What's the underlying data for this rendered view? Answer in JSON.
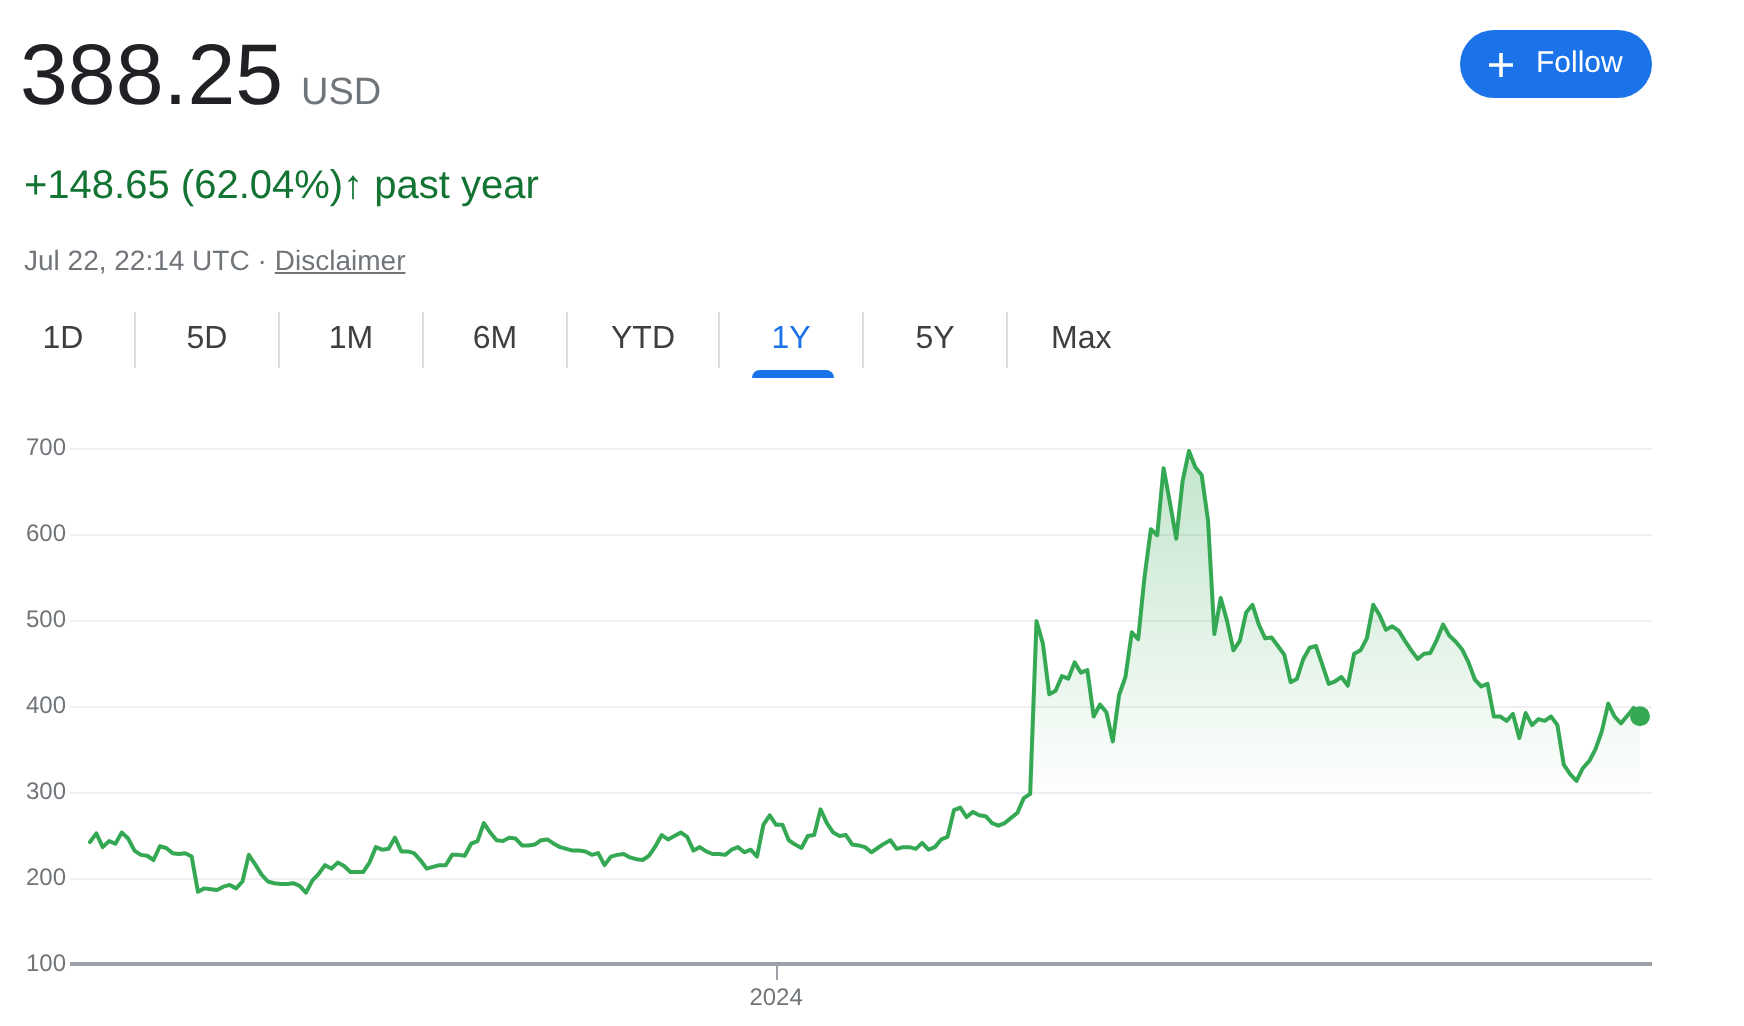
{
  "chart_data": {
    "type": "area",
    "title": "388.25 USD",
    "subtitle": "+148.65 (62.04%)↑ past year",
    "annotations": [
      "Jul 22, 22:14 UTC ·",
      "Disclaimer",
      "1D",
      "5D",
      "1M",
      "6M",
      "YTD",
      "1Y",
      "5Y",
      "Max",
      "Follow"
    ],
    "categories": [
      null,
      null,
      null,
      null,
      null,
      null,
      null,
      null,
      null,
      null,
      null,
      null,
      null,
      null,
      null,
      null,
      null,
      null,
      null,
      null,
      null,
      null,
      null,
      null,
      null,
      null,
      null,
      null,
      null,
      null,
      null,
      null,
      null,
      null,
      null,
      null,
      null,
      null,
      null,
      null,
      null,
      null,
      null,
      null,
      null,
      null,
      null,
      null,
      null,
      null,
      null,
      null,
      null,
      null,
      null,
      null,
      null,
      null,
      null,
      null,
      null,
      null,
      null,
      null,
      null,
      null,
      null,
      null,
      null,
      null,
      null,
      null,
      null,
      null,
      null,
      null,
      null,
      null,
      null,
      null,
      null,
      null,
      null,
      null,
      null,
      null,
      null,
      null,
      null,
      null,
      null,
      null,
      null,
      null,
      null,
      null,
      null,
      null,
      null,
      null,
      null,
      null,
      null,
      null,
      null,
      null,
      null,
      null,
      "2024",
      null,
      null,
      null,
      null,
      null,
      null,
      null,
      null,
      null,
      null,
      null,
      null,
      null,
      null,
      null,
      null,
      null,
      null,
      null,
      null,
      null,
      null,
      null,
      null,
      null,
      null,
      null,
      null,
      null,
      null,
      null,
      null,
      null,
      null,
      null,
      null,
      null,
      null,
      null,
      null,
      null,
      null,
      null,
      null,
      null,
      null,
      null,
      null,
      null,
      null,
      null,
      null,
      null,
      null,
      null,
      null,
      null,
      null,
      null,
      null,
      null,
      null,
      null,
      null,
      null,
      null,
      null,
      null,
      null,
      null,
      null,
      null,
      null,
      null,
      null,
      null,
      null,
      null,
      null,
      null,
      null,
      null,
      null,
      null,
      null,
      null,
      null,
      null,
      null,
      null,
      null,
      null,
      null,
      null,
      null,
      null,
      null,
      null,
      null,
      null,
      null,
      null,
      null,
      null,
      null,
      null,
      null,
      null,
      null,
      null,
      null,
      null,
      null,
      null,
      null,
      null,
      null,
      null,
      null,
      null,
      null,
      null,
      null,
      null,
      null,
      null,
      null,
      null,
      null,
      null,
      null,
      null,
      null,
      null,
      null,
      null
    ],
    "series": [
      {
        "color": "#34a853",
        "values": [
          242,
          252,
          236,
          243,
          240,
          253,
          246,
          232,
          227,
          226,
          221,
          237,
          235,
          229,
          228,
          229,
          225,
          184,
          188,
          187,
          186,
          190,
          192,
          188,
          196,
          227,
          216,
          204,
          196,
          194,
          193,
          193,
          194,
          191,
          183,
          197,
          205,
          215,
          211,
          218,
          214,
          207,
          207,
          207,
          218,
          236,
          233,
          234,
          247,
          231,
          231,
          229,
          221,
          211,
          213,
          215,
          215,
          227,
          227,
          226,
          240,
          243,
          264,
          253,
          244,
          243,
          247,
          246,
          238,
          238,
          239,
          244,
          245,
          240,
          236,
          234,
          232,
          232,
          231,
          227,
          229,
          215,
          225,
          227,
          228,
          224,
          222,
          221,
          226,
          237,
          250,
          245,
          249,
          253,
          248,
          232,
          236,
          231,
          228,
          228,
          227,
          233,
          236,
          230,
          233,
          225,
          262,
          273,
          262,
          262,
          244,
          239,
          235,
          249,
          250,
          280,
          264,
          253,
          249,
          250,
          239,
          238,
          236,
          230,
          235,
          240,
          244,
          234,
          236,
          236,
          234,
          241,
          233,
          236,
          245,
          248,
          279,
          282,
          271,
          277,
          273,
          272,
          264,
          261,
          264,
          270,
          276,
          293,
          298,
          499,
          473,
          414,
          418,
          435,
          432,
          451,
          439,
          442,
          388,
          402,
          393,
          359,
          413,
          434,
          486,
          478,
          550,
          606,
          599,
          677,
          637,
          595,
          662,
          697,
          678,
          669,
          616,
          484,
          526,
          499,
          465,
          476,
          509,
          518,
          495,
          479,
          480,
          470,
          460,
          428,
          432,
          455,
          468,
          470,
          448,
          426,
          429,
          434,
          424,
          461,
          465,
          479,
          518,
          506,
          489,
          493,
          488,
          476,
          465,
          455,
          461,
          462,
          477,
          495,
          482,
          475,
          466,
          451,
          431,
          423,
          426,
          388,
          388,
          383,
          391,
          363,
          392,
          378,
          385,
          383,
          388,
          378,
          332,
          321,
          313,
          328,
          336,
          350,
          371,
          403,
          388,
          380,
          389,
          398,
          388.25
        ]
      },
      {
        "type": "scatter",
        "color": "#34a853",
        "marker": "circle",
        "values": [
          null,
          null,
          null,
          null,
          null,
          null,
          null,
          null,
          null,
          null,
          null,
          null,
          null,
          null,
          null,
          null,
          null,
          null,
          null,
          null,
          null,
          null,
          null,
          null,
          null,
          null,
          null,
          null,
          null,
          null,
          null,
          null,
          null,
          null,
          null,
          null,
          null,
          null,
          null,
          null,
          null,
          null,
          null,
          null,
          null,
          null,
          null,
          null,
          null,
          null,
          null,
          null,
          null,
          null,
          null,
          null,
          null,
          null,
          null,
          null,
          null,
          null,
          null,
          null,
          null,
          null,
          null,
          null,
          null,
          null,
          null,
          null,
          null,
          null,
          null,
          null,
          null,
          null,
          null,
          null,
          null,
          null,
          null,
          null,
          null,
          null,
          null,
          null,
          null,
          null,
          null,
          null,
          null,
          null,
          null,
          null,
          null,
          null,
          null,
          null,
          null,
          null,
          null,
          null,
          null,
          null,
          null,
          null,
          null,
          null,
          null,
          null,
          null,
          null,
          null,
          null,
          null,
          null,
          null,
          null,
          null,
          null,
          null,
          null,
          null,
          null,
          null,
          null,
          null,
          null,
          null,
          null,
          null,
          null,
          null,
          null,
          null,
          null,
          null,
          null,
          null,
          null,
          null,
          null,
          null,
          null,
          null,
          null,
          null,
          null,
          null,
          null,
          null,
          null,
          null,
          null,
          null,
          null,
          null,
          null,
          null,
          null,
          null,
          null,
          null,
          null,
          null,
          null,
          null,
          null,
          null,
          null,
          null,
          null,
          null,
          null,
          null,
          null,
          null,
          null,
          null,
          null,
          null,
          null,
          null,
          null,
          null,
          null,
          null,
          null,
          null,
          null,
          null,
          null,
          null,
          null,
          null,
          null,
          null,
          null,
          null,
          null,
          null,
          null,
          null,
          null,
          null,
          null,
          null,
          null,
          null,
          null,
          null,
          null,
          null,
          null,
          null,
          null,
          null,
          null,
          null,
          null,
          null,
          null,
          null,
          null,
          null,
          null,
          null,
          null,
          null,
          null,
          null,
          null,
          null,
          null,
          null,
          null,
          null,
          null,
          null,
          null,
          null,
          null,
          388.25
        ]
      }
    ],
    "ylim": [
      100,
      700
    ],
    "yticks": [
      100,
      200,
      300,
      400,
      500,
      600,
      700
    ],
    "grid": "y",
    "legend": false
  }
}
